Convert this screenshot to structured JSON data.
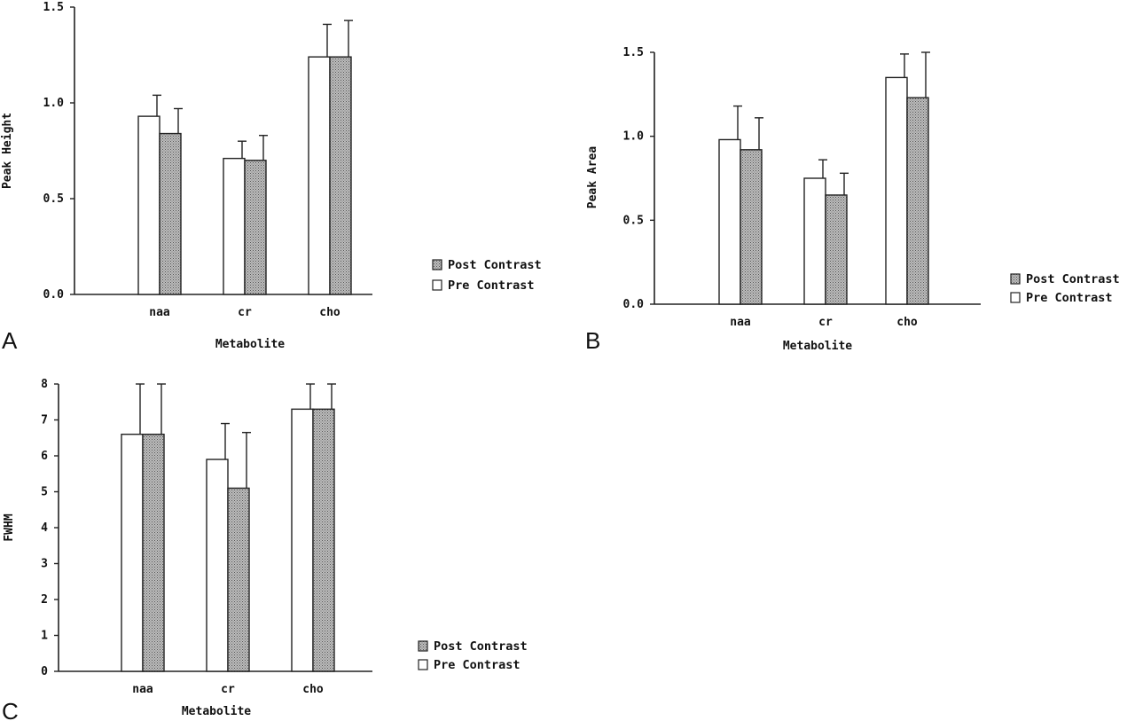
{
  "chart_data": [
    {
      "panel": "A",
      "type": "bar",
      "xlabel": "Metabolite",
      "ylabel": "Peak Height",
      "ylim": [
        0,
        1.5
      ],
      "yticks": [
        "0.0",
        "0.5",
        "1.0",
        "1.5"
      ],
      "categories": [
        "naa",
        "cr",
        "cho"
      ],
      "series": [
        {
          "name": "Pre Contrast",
          "values": [
            0.93,
            0.71,
            1.24
          ],
          "errors": [
            0.11,
            0.09,
            0.17
          ],
          "fill": "white"
        },
        {
          "name": "Post Contrast",
          "values": [
            0.84,
            0.7,
            1.24
          ],
          "errors": [
            0.13,
            0.13,
            0.19
          ],
          "fill": "hatched"
        }
      ],
      "legend": [
        "Post Contrast",
        "Pre Contrast"
      ],
      "legend_position": "right"
    },
    {
      "panel": "B",
      "type": "bar",
      "xlabel": "Metabolite",
      "ylabel": "Peak Area",
      "ylim": [
        0,
        1.5
      ],
      "yticks": [
        "0.0",
        "0.5",
        "1.0",
        "1.5"
      ],
      "categories": [
        "naa",
        "cr",
        "cho"
      ],
      "series": [
        {
          "name": "Pre Contrast",
          "values": [
            0.98,
            0.75,
            1.35
          ],
          "errors": [
            0.2,
            0.11,
            0.14
          ],
          "fill": "white"
        },
        {
          "name": "Post Contrast",
          "values": [
            0.92,
            0.65,
            1.23
          ],
          "errors": [
            0.19,
            0.13,
            0.27
          ],
          "fill": "hatched"
        }
      ],
      "legend": [
        "Post Contrast",
        "Pre Contrast"
      ],
      "legend_position": "right"
    },
    {
      "panel": "C",
      "type": "bar",
      "xlabel": "Metabolite",
      "ylabel": "FWHM",
      "ylim": [
        0,
        8
      ],
      "yticks": [
        "0",
        "1",
        "2",
        "3",
        "4",
        "5",
        "6",
        "7",
        "8"
      ],
      "categories": [
        "naa",
        "cr",
        "cho"
      ],
      "series": [
        {
          "name": "Pre Contrast",
          "values": [
            6.6,
            5.9,
            7.3
          ],
          "errors": [
            1.4,
            1.0,
            0.7
          ],
          "fill": "white"
        },
        {
          "name": "Post Contrast",
          "values": [
            6.6,
            5.1,
            7.3
          ],
          "errors": [
            1.4,
            1.55,
            0.7
          ],
          "fill": "hatched"
        }
      ],
      "legend": [
        "Post Contrast",
        "Pre Contrast"
      ],
      "legend_position": "right"
    }
  ],
  "panel_letters": [
    "A",
    "B",
    "C"
  ]
}
